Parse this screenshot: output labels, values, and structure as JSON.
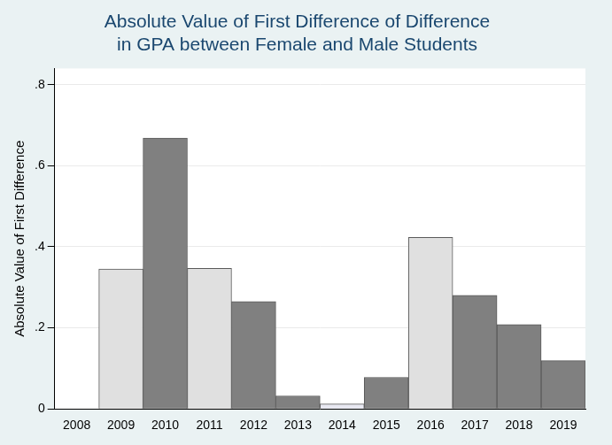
{
  "chart_data": {
    "type": "bar",
    "title": [
      "Absolute Value of First Difference of Difference",
      "in GPA between Female and Male Students"
    ],
    "y_label": "Absolute Value of First Difference",
    "categories": [
      "2008",
      "2009",
      "2010",
      "2011",
      "2012",
      "2013",
      "2014",
      "2015",
      "2016",
      "2017",
      "2018",
      "2019"
    ],
    "values": [
      null,
      0.345,
      0.668,
      0.347,
      0.265,
      0.032,
      0.012,
      0.078,
      0.423,
      0.28,
      0.208,
      0.119
    ],
    "colors": [
      "#e0e0e0",
      "#e0e0e0",
      "#808080",
      "#e0e0e0",
      "#808080",
      "#808080",
      "#e8e8f2",
      "#808080",
      "#e0e0e0",
      "#808080",
      "#808080",
      "#808080"
    ],
    "ylim": [
      0,
      0.84
    ],
    "yticks": [
      0,
      {
        "value": 0.2,
        "label": ".2"
      },
      {
        "value": 0.4,
        "label": ".4"
      },
      {
        "value": 0.6,
        "label": ".6"
      },
      {
        "value": 0.8,
        "label": ".8"
      }
    ],
    "grid": true
  }
}
